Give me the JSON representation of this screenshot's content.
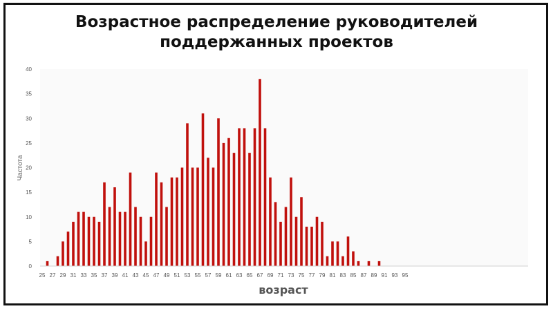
{
  "chart_data": {
    "type": "bar",
    "title_lines": [
      "Возрастное распределение руководителей",
      "поддержанных проектов"
    ],
    "xlabel": "возраст",
    "ylabel": "Частота",
    "ylim": [
      0,
      40
    ],
    "yticks": [
      0,
      5,
      10,
      15,
      20,
      25,
      30,
      35,
      40
    ],
    "x_tick_labels": [
      "25",
      "27",
      "29",
      "31",
      "33",
      "35",
      "37",
      "39",
      "41",
      "43",
      "45",
      "47",
      "49",
      "51",
      "53",
      "55",
      "57",
      "59",
      "61",
      "63",
      "65",
      "67",
      "69",
      "71",
      "73",
      "75",
      "77",
      "79",
      "81",
      "83",
      "85",
      "87",
      "89",
      "91",
      "93",
      "95"
    ],
    "categories": [
      26,
      28,
      29,
      30,
      31,
      32,
      33,
      34,
      35,
      36,
      37,
      38,
      39,
      40,
      41,
      42,
      43,
      44,
      45,
      46,
      47,
      48,
      49,
      50,
      51,
      52,
      53,
      54,
      55,
      56,
      57,
      58,
      59,
      60,
      61,
      62,
      63,
      64,
      65,
      66,
      67,
      68,
      69,
      70,
      71,
      72,
      73,
      74,
      75,
      76,
      77,
      78,
      79,
      80,
      81,
      82,
      83,
      84,
      85,
      86,
      88,
      90
    ],
    "values": [
      1,
      2,
      5,
      7,
      9,
      11,
      11,
      10,
      10,
      9,
      17,
      12,
      16,
      11,
      11,
      19,
      12,
      10,
      5,
      10,
      19,
      17,
      12,
      18,
      18,
      20,
      29,
      20,
      20,
      31,
      22,
      20,
      30,
      25,
      26,
      23,
      28,
      28,
      23,
      28,
      38,
      28,
      18,
      13,
      9,
      12,
      18,
      10,
      14,
      8,
      8,
      10,
      9,
      2,
      5,
      5,
      2,
      6,
      3,
      1,
      1,
      1
    ],
    "bar_color": "#c0100c",
    "grid": false,
    "legend": "none"
  }
}
